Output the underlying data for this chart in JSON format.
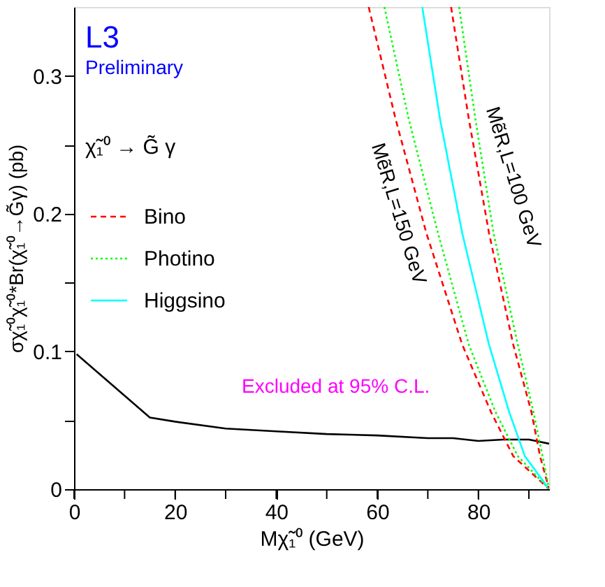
{
  "chart_data": {
    "type": "line",
    "xlabel": "Mχ̃₁⁰  (GeV)",
    "ylabel": "σχ̃₁⁰χ̃₁⁰*Br(χ̃₁⁰→G̃γ) (pb)",
    "xlim": [
      0,
      94
    ],
    "ylim": [
      0,
      0.35
    ],
    "xticks": [
      0,
      {
        "value": 10,
        "label": null
      },
      20,
      {
        "value": 30,
        "label": null
      },
      40,
      {
        "value": 50,
        "label": null
      },
      60,
      {
        "value": 70,
        "label": null
      },
      80,
      {
        "value": 90,
        "label": null
      }
    ],
    "yticks": [
      0,
      {
        "value": 0.05,
        "label": null
      },
      0.1,
      {
        "value": 0.15,
        "label": null
      },
      0.2,
      {
        "value": 0.25,
        "label": null
      },
      0.3
    ],
    "grid": false,
    "legend": "left",
    "marker": "none",
    "series": [
      {
        "color": "#000000",
        "line_style": "solid",
        "x": [
          0.5,
          15,
          20,
          30,
          40,
          50,
          60,
          70,
          75,
          80,
          85,
          90,
          94
        ],
        "values": [
          0.098,
          0.052,
          0.049,
          0.044,
          0.042,
          0.04,
          0.039,
          0.037,
          0.037,
          0.035,
          0.036,
          0.036,
          0.033
        ]
      },
      {
        "name": "Bino",
        "color": "#ff0000",
        "line_style": "dashed",
        "x": [
          58.3,
          63.6,
          69.7,
          76.8,
          82.5,
          86.9,
          94
        ],
        "values": [
          0.35,
          0.269,
          0.186,
          0.105,
          0.056,
          0.024,
          0
        ]
      },
      {
        "name": "Photino",
        "color": "#00ff00",
        "line_style": "dotted",
        "x": [
          61.4,
          66.2,
          72.0,
          78.1,
          83.4,
          87.8,
          94
        ],
        "values": [
          0.35,
          0.269,
          0.186,
          0.105,
          0.056,
          0.024,
          0
        ]
      },
      {
        "name": "Higgsino",
        "color": "#00ffff",
        "line_style": "solid",
        "x": [
          68.9,
          72.4,
          76.8,
          82.1,
          86.1,
          89.2,
          94
        ],
        "values": [
          0.35,
          0.269,
          0.186,
          0.105,
          0.056,
          0.024,
          0
        ]
      },
      {
        "color": "#ff0000",
        "line_style": "dashed",
        "x": [
          74.6,
          78.1,
          82.1,
          86.9,
          90.5,
          92.2,
          94
        ],
        "values": [
          0.35,
          0.269,
          0.186,
          0.105,
          0.056,
          0.024,
          0
        ]
      },
      {
        "color": "#00ff00",
        "line_style": "dotted",
        "x": [
          76.2,
          79.4,
          83.0,
          87.8,
          90.9,
          92.7,
          94
        ],
        "values": [
          0.35,
          0.269,
          0.186,
          0.105,
          0.056,
          0.024,
          0
        ]
      }
    ],
    "annotations": [
      "L3",
      "Preliminary",
      "χ̃₁⁰ → G̃ γ",
      "Excluded at 95% C.L.",
      "MẽR,L=150 GeV",
      "MẽR,L=100 GeV"
    ]
  }
}
